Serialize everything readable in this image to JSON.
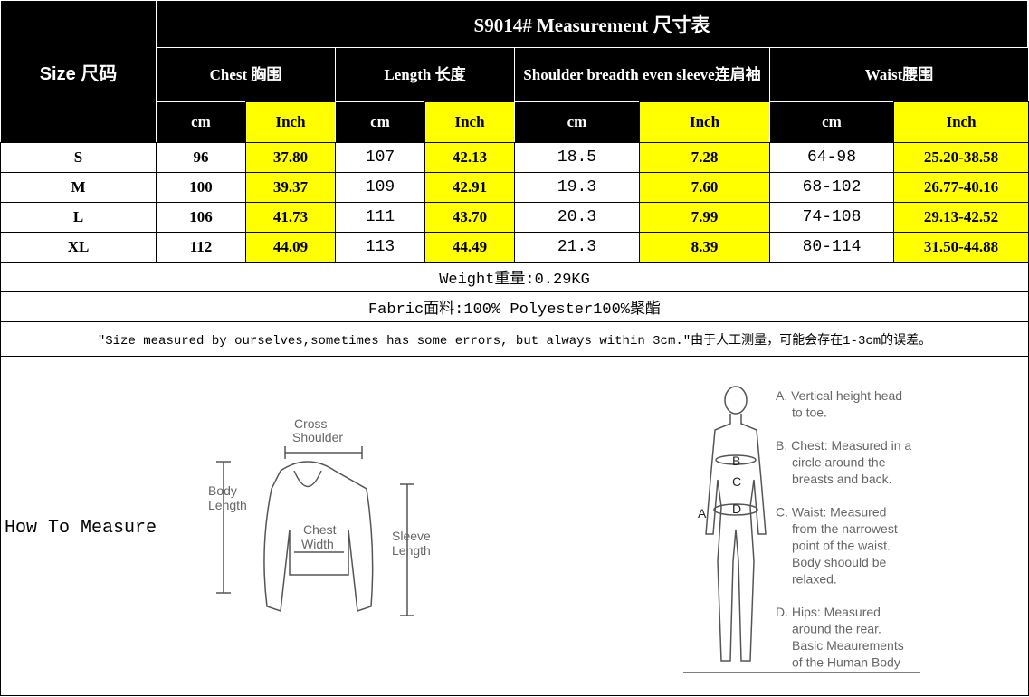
{
  "title": "S9014# Measurement 尺寸表",
  "size_header": "Size 尺码",
  "groups": [
    "Chest 胸围",
    "Length 长度",
    "Shoulder breadth even sleeve连肩袖",
    "Waist腰围"
  ],
  "units": [
    "cm",
    "Inch",
    "cm",
    "Inch",
    "cm",
    "Inch",
    "cm",
    "Inch"
  ],
  "rows": [
    [
      "S",
      "96",
      "37.80",
      "107",
      "42.13",
      "18.5",
      "7.28",
      "64-98",
      "25.20-38.58"
    ],
    [
      "M",
      "100",
      "39.37",
      "109",
      "42.91",
      "19.3",
      "7.60",
      "68-102",
      "26.77-40.16"
    ],
    [
      "L",
      "106",
      "41.73",
      "111",
      "43.70",
      "20.3",
      "7.99",
      "74-108",
      "29.13-42.52"
    ],
    [
      "XL",
      "112",
      "44.09",
      "113",
      "44.49",
      "21.3",
      "8.39",
      "80-114",
      "31.50-44.88"
    ]
  ],
  "weight": "Weight重量:0.29KG",
  "fabric": "Fabric面料:100% Polyester100%聚酯",
  "note": "\"Size measured by ourselves,sometimes has some errors, but always within 3cm.\"由于人工测量，可能会存在1-3cm的误差。",
  "how_to": "How To Measure",
  "garment_labels": {
    "cross1": "Cross",
    "cross2": "Shoulder",
    "body1": "Body",
    "body2": "Length",
    "chest1": "Chest",
    "chest2": "Width",
    "sleeve1": "Sleeve",
    "sleeve2": "Length"
  },
  "body_letters": [
    "A",
    "B",
    "C",
    "D"
  ],
  "body_notes": [
    [
      "A. Vertical height head",
      "to toe."
    ],
    [
      "B. Chest: Measured in a",
      "circle around the",
      "breasts and back."
    ],
    [
      "C. Waist: Measured",
      "from the narrowest",
      "point of the waist.",
      "Body shoould be",
      "relaxed."
    ],
    [
      "D. Hips: Measured",
      "around the rear.",
      "Basic Meaurements",
      "of the Human Body"
    ]
  ],
  "colors": {
    "header_bg": "#000000",
    "inch_bg": "#ffff00"
  }
}
